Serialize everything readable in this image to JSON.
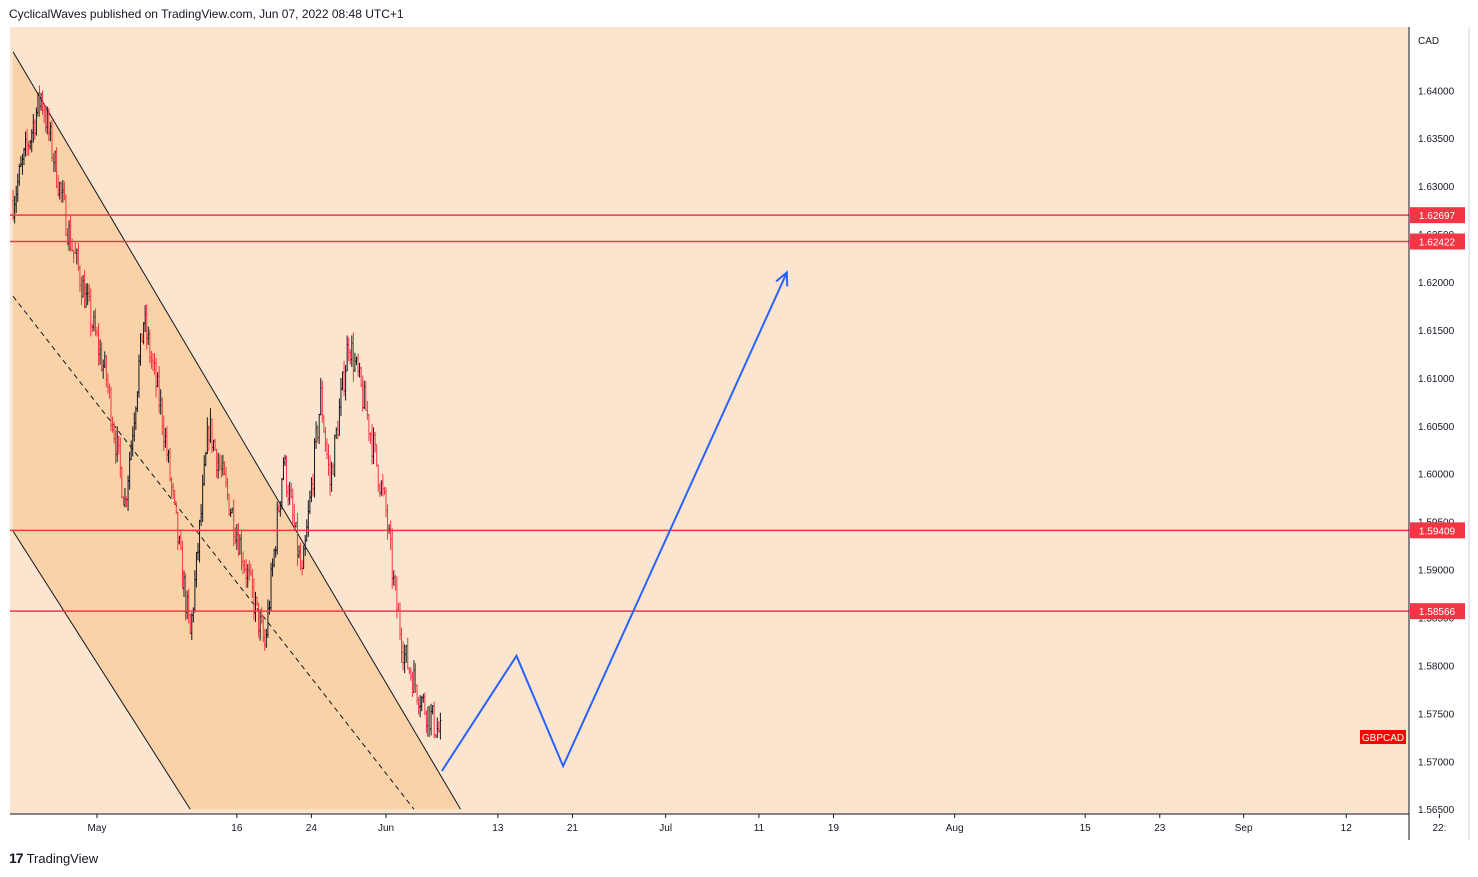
{
  "header": {
    "publish_text": "CyclicalWaves published on TradingView.com, Jun 07, 2022 08:48 UTC+1"
  },
  "footer": {
    "brand": "TradingView",
    "logo_glyph": "17"
  },
  "colors": {
    "background": "#fbe5cf",
    "channel_fill": "#f9d2a8",
    "level_line": "#f23645",
    "projection": "#2962ff",
    "candle_up": "#131722",
    "candle_down": "#f23645"
  },
  "chart_data": {
    "type": "candlestick",
    "symbol": "GBPCAD",
    "currency_label": "CAD",
    "y_ticks": [
      "1.64000",
      "1.63500",
      "1.63000",
      "1.62500",
      "1.62000",
      "1.61500",
      "1.61000",
      "1.60500",
      "1.60000",
      "1.59500",
      "1.59000",
      "1.58500",
      "1.58000",
      "1.57500",
      "1.57000",
      "1.56500"
    ],
    "x_ticks": [
      "May",
      "16",
      "24",
      "Jun",
      "13",
      "21",
      "Jul",
      "11",
      "19",
      "Aug",
      "15",
      "23",
      "Sep",
      "12",
      "22:"
    ],
    "ylim": [
      1.5645,
      1.6466
    ],
    "horizontal_levels": [
      {
        "label": "1.62697",
        "value": 1.62697
      },
      {
        "label": "1.62422",
        "value": 1.62422
      },
      {
        "label": "1.59409",
        "value": 1.59409
      },
      {
        "label": "1.58566",
        "value": 1.58566
      }
    ],
    "price_path": [
      [
        "Apr 22",
        1.6285
      ],
      [
        "Apr 25",
        1.6395
      ],
      [
        "Apr 28",
        1.625
      ],
      [
        "May 2",
        1.61
      ],
      [
        "May 4",
        1.597
      ],
      [
        "May 6",
        1.616
      ],
      [
        "May 8",
        1.606
      ],
      [
        "May 11",
        1.583
      ],
      [
        "May 13",
        1.605
      ],
      [
        "May 16",
        1.594
      ],
      [
        "May 19",
        1.582
      ],
      [
        "May 21",
        1.6015
      ],
      [
        "May 23",
        1.589
      ],
      [
        "May 25",
        1.608
      ],
      [
        "May 26",
        1.599
      ],
      [
        "May 28",
        1.614
      ],
      [
        "May 30",
        1.606
      ],
      [
        "Jun 1",
        1.596
      ],
      [
        "Jun 2",
        1.587
      ],
      [
        "Jun 3",
        1.581
      ],
      [
        "Jun 5",
        1.576
      ],
      [
        "Jun 7",
        1.5725
      ]
    ],
    "channel": {
      "upper": [
        [
          "Apr 22",
          1.644
        ],
        [
          "Jun 9",
          1.565
        ]
      ],
      "mid": [
        [
          "Apr 22",
          1.6185
        ],
        [
          "Jun 4",
          1.565
        ]
      ],
      "lower": [
        [
          "Apr 22",
          1.594
        ],
        [
          "May 11",
          1.565
        ]
      ]
    },
    "projection": [
      [
        "Jun 7",
        1.569
      ],
      [
        "Jun 15",
        1.581
      ],
      [
        "Jun 20",
        1.5695
      ],
      [
        "Jul 14",
        1.621
      ]
    ]
  }
}
